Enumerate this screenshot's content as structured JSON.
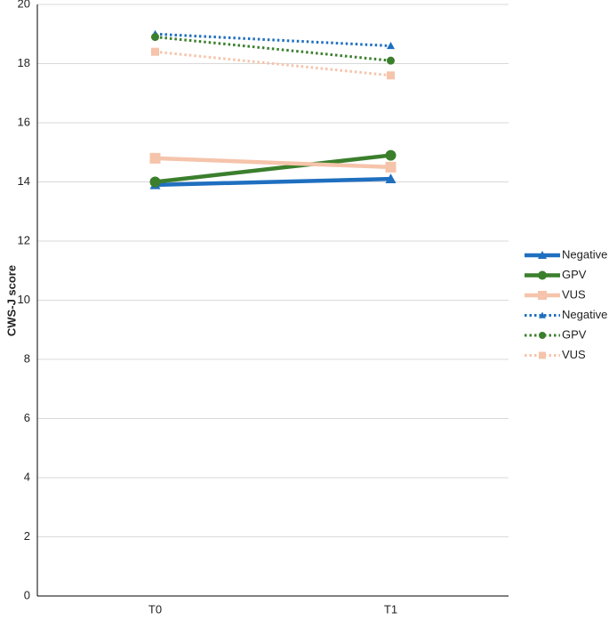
{
  "chart_data": {
    "type": "line",
    "y_label": "CWS-J score",
    "categories": [
      "T0",
      "T1"
    ],
    "series": [
      {
        "name": "Negative",
        "color": "#1f6fc0",
        "line_style": "solid",
        "marker": "triangle",
        "values": [
          13.9,
          14.1
        ]
      },
      {
        "name": "GPV",
        "color": "#3b7f2d",
        "line_style": "solid",
        "marker": "circle",
        "values": [
          14.0,
          14.9
        ]
      },
      {
        "name": "VUS",
        "color": "#f5c4ab",
        "line_style": "solid",
        "marker": "square",
        "values": [
          14.8,
          14.5
        ]
      },
      {
        "name": "Negative",
        "color": "#1f6fc0",
        "line_style": "dotted",
        "marker": "triangle",
        "values": [
          19.0,
          18.6
        ]
      },
      {
        "name": "GPV",
        "color": "#3b7f2d",
        "line_style": "dotted",
        "marker": "circle",
        "values": [
          18.9,
          18.1
        ]
      },
      {
        "name": "VUS",
        "color": "#f5c4ab",
        "line_style": "dotted",
        "marker": "square",
        "values": [
          18.4,
          17.6
        ]
      }
    ],
    "ylim": [
      0,
      20
    ],
    "yticks": [
      0,
      2,
      4,
      6,
      8,
      10,
      12,
      14,
      16,
      18,
      20
    ],
    "grid": true,
    "legend": "right"
  }
}
